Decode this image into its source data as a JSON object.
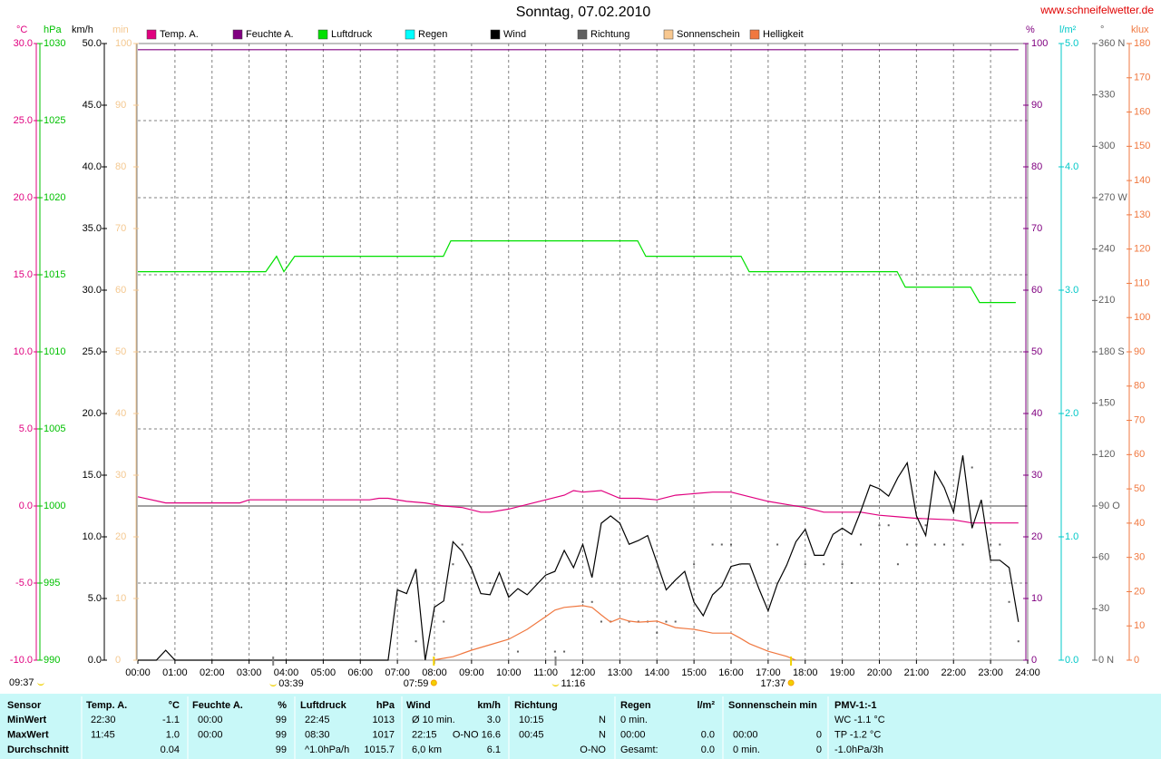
{
  "chart_data": {
    "type": "line",
    "title": "Sonntag, 07.02.2010",
    "source": "www.schneifelwetter.de",
    "grid": true,
    "xlim": [
      0,
      24
    ],
    "xticks": [
      {
        "value": 0,
        "label": "00:00"
      },
      {
        "value": 1,
        "label": "01:00"
      },
      {
        "value": 2,
        "label": "02:00"
      },
      {
        "value": 3,
        "label": "03:00"
      },
      {
        "value": 4,
        "label": "04:00"
      },
      {
        "value": 5,
        "label": "05:00"
      },
      {
        "value": 6,
        "label": "06:00"
      },
      {
        "value": 7,
        "label": "07:00"
      },
      {
        "value": 8,
        "label": "08:00"
      },
      {
        "value": 9,
        "label": "09:00"
      },
      {
        "value": 10,
        "label": "10:00"
      },
      {
        "value": 11,
        "label": "11:00"
      },
      {
        "value": 12,
        "label": "12:00"
      },
      {
        "value": 13,
        "label": "13:00"
      },
      {
        "value": 14,
        "label": "14:00"
      },
      {
        "value": 15,
        "label": "15:00"
      },
      {
        "value": 16,
        "label": "16:00"
      },
      {
        "value": 17,
        "label": "17:00"
      },
      {
        "value": 18,
        "label": "18:00"
      },
      {
        "value": 19,
        "label": "19:00"
      },
      {
        "value": 20,
        "label": "20:00"
      },
      {
        "value": 21,
        "label": "21:00"
      },
      {
        "value": 22,
        "label": "22:00"
      },
      {
        "value": 23,
        "label": "23:00"
      },
      {
        "value": 24,
        "label": "24:00"
      }
    ],
    "axes": {
      "temp": {
        "unit": "°C",
        "color": "#e0007f",
        "lim": [
          -10,
          30
        ],
        "ticks": [
          {
            "value": -10,
            "label": "-10.0"
          },
          {
            "value": -5,
            "label": "-5.0"
          },
          {
            "value": 0,
            "label": "0.0"
          },
          {
            "value": 5,
            "label": "5.0"
          },
          {
            "value": 10,
            "label": "10.0"
          },
          {
            "value": 15,
            "label": "15.0"
          },
          {
            "value": 20,
            "label": "20.0"
          },
          {
            "value": 25,
            "label": "25.0"
          },
          {
            "value": 30,
            "label": "30.0"
          }
        ]
      },
      "press": {
        "unit": "hPa",
        "color": "#00c000",
        "lim": [
          990,
          1030
        ],
        "ticks": [
          990,
          995,
          1000,
          1005,
          1010,
          1015,
          1020,
          1025,
          1030
        ]
      },
      "wind": {
        "unit": "km/h",
        "color": "#000000",
        "lim": [
          0,
          50
        ],
        "ticks": [
          {
            "value": 0,
            "label": "0.0"
          },
          {
            "value": 5,
            "label": "5.0"
          },
          {
            "value": 10,
            "label": "10.0"
          },
          {
            "value": 15,
            "label": "15.0"
          },
          {
            "value": 20,
            "label": "20.0"
          },
          {
            "value": 25,
            "label": "25.0"
          },
          {
            "value": 30,
            "label": "30.0"
          },
          {
            "value": 35,
            "label": "35.0"
          },
          {
            "value": 40,
            "label": "40.0"
          },
          {
            "value": 45,
            "label": "45.0"
          },
          {
            "value": 50,
            "label": "50.0"
          }
        ]
      },
      "sun": {
        "unit": "min",
        "color": "#f4c890",
        "lim": [
          0,
          100
        ],
        "ticks": [
          0,
          10,
          20,
          30,
          40,
          50,
          60,
          70,
          80,
          90,
          100
        ]
      },
      "hum": {
        "unit": "%",
        "color": "#800080",
        "lim": [
          0,
          100
        ],
        "ticks": [
          0,
          10,
          20,
          30,
          40,
          50,
          60,
          70,
          80,
          90,
          100
        ]
      },
      "rain": {
        "unit": "l/m²",
        "color": "#00c8c8",
        "lim": [
          0,
          5
        ],
        "ticks": [
          {
            "value": 0,
            "label": "0.0"
          },
          {
            "value": 1,
            "label": "1.0"
          },
          {
            "value": 2,
            "label": "2.0"
          },
          {
            "value": 3,
            "label": "3.0"
          },
          {
            "value": 4,
            "label": "4.0"
          },
          {
            "value": 5,
            "label": "5.0"
          }
        ]
      },
      "dir": {
        "unit": "°",
        "color": "#606060",
        "lim": [
          0,
          360
        ],
        "ticks": [
          {
            "value": 0,
            "label": "0 N"
          },
          30,
          60,
          {
            "value": 90,
            "label": "90 O"
          },
          120,
          150,
          {
            "value": 180,
            "label": "180 S"
          },
          210,
          240,
          {
            "value": 270,
            "label": "270 W"
          },
          300,
          330,
          {
            "value": 360,
            "label": "360 N"
          }
        ]
      },
      "lux": {
        "unit": "klux",
        "color": "#f07840",
        "lim": [
          0,
          180
        ],
        "ticks": [
          0,
          10,
          20,
          30,
          40,
          50,
          60,
          70,
          80,
          90,
          100,
          110,
          120,
          130,
          140,
          150,
          160,
          170,
          180
        ]
      }
    },
    "series": [
      {
        "name": "Temp. A.",
        "color": "#e0007f",
        "axis": "temp",
        "x": [
          0,
          0.75,
          2.75,
          3,
          6.25,
          6.5,
          6.75,
          7.25,
          7.75,
          8.25,
          8.75,
          9.25,
          9.5,
          10,
          10.5,
          11,
          11.5,
          11.75,
          12,
          12.5,
          13,
          13.5,
          14,
          14.5,
          15,
          15.5,
          16,
          16.5,
          17,
          17.5,
          18,
          18.5,
          19.5,
          20,
          20.5,
          21,
          22,
          22.5,
          23.75
        ],
        "values": [
          0.6,
          0.2,
          0.2,
          0.4,
          0.4,
          0.5,
          0.5,
          0.3,
          0.2,
          0.0,
          -0.1,
          -0.4,
          -0.4,
          -0.2,
          0.1,
          0.4,
          0.7,
          1.0,
          0.9,
          1.0,
          0.5,
          0.5,
          0.4,
          0.7,
          0.8,
          0.9,
          0.9,
          0.6,
          0.3,
          0.1,
          -0.1,
          -0.4,
          -0.4,
          -0.6,
          -0.7,
          -0.8,
          -0.9,
          -1.1,
          -1.1
        ]
      },
      {
        "name": "Feuchte A.",
        "color": "#800080",
        "axis": "hum",
        "x": [
          0,
          23.75
        ],
        "values": [
          99,
          99
        ]
      },
      {
        "name": "Luftdruck",
        "color": "#00e000",
        "axis": "press",
        "x": [
          0,
          3.45,
          3.74,
          3.94,
          4.23,
          8.24,
          8.44,
          13.48,
          13.7,
          16.27,
          16.49,
          20.48,
          20.7,
          22.46,
          22.7,
          23.68
        ],
        "values": [
          1015.2,
          1015.2,
          1016.2,
          1015.2,
          1016.2,
          1016.2,
          1017.2,
          1017.2,
          1016.2,
          1016.2,
          1015.2,
          1015.2,
          1014.2,
          1014.2,
          1013.2,
          1013.2
        ]
      },
      {
        "name": "Regen",
        "color": "#00ffff",
        "axis": "rain"
      },
      {
        "name": "Wind",
        "color": "#000000",
        "axis": "wind",
        "x": [
          0,
          0.5,
          0.75,
          1,
          6.75,
          7,
          7.25,
          7.5,
          7.75,
          8,
          8.25,
          8.5,
          8.75,
          9,
          9.25,
          9.5,
          9.75,
          10,
          10.25,
          10.5,
          10.75,
          11,
          11.25,
          11.5,
          11.75,
          12,
          12.25,
          12.5,
          12.75,
          13,
          13.25,
          13.5,
          13.75,
          14,
          14.25,
          14.5,
          14.75,
          15,
          15.25,
          15.5,
          15.75,
          16,
          16.25,
          16.5,
          16.75,
          17,
          17.25,
          17.5,
          17.75,
          18,
          18.25,
          18.5,
          18.75,
          19,
          19.25,
          19.5,
          19.75,
          20,
          20.25,
          20.5,
          20.75,
          21,
          21.25,
          21.5,
          21.75,
          22,
          22.25,
          22.5,
          22.75,
          23,
          23.25,
          23.5,
          23.75
        ],
        "values": [
          0,
          0,
          0.8,
          0,
          0,
          5.7,
          5.4,
          7.4,
          0,
          4.3,
          4.8,
          9.6,
          8.8,
          7.4,
          5.4,
          5.3,
          7.1,
          5.1,
          5.8,
          5.3,
          6.1,
          6.9,
          7.2,
          8.9,
          7.5,
          9.4,
          6.7,
          11.1,
          11.7,
          11.1,
          9.4,
          9.7,
          10.1,
          7.9,
          5.7,
          6.5,
          7.2,
          4.7,
          3.6,
          5.3,
          6.0,
          7.6,
          7.8,
          7.8,
          5.8,
          4.0,
          6.2,
          7.7,
          9.6,
          10.6,
          8.5,
          8.5,
          10.2,
          10.7,
          10.2,
          12.1,
          14.2,
          13.9,
          13.3,
          14.8,
          16.0,
          11.7,
          10.1,
          15.3,
          14.0,
          12.0,
          16.6,
          10.7,
          13.0,
          8.1,
          8.1,
          7.5,
          3.1
        ]
      },
      {
        "name": "Richtung",
        "color": "#606060",
        "axis": "dir",
        "style": "dots",
        "x": [
          7.5,
          8.25,
          8.5,
          8.75,
          9.5,
          10,
          10.25,
          11.25,
          11.5,
          12,
          12.25,
          12.5,
          12.75,
          13.25,
          13.5,
          13.75,
          14,
          14.25,
          14.5,
          15,
          15.5,
          15.75,
          16,
          16.25,
          16.5,
          17.25,
          18,
          18.5,
          19,
          19.25,
          19.5,
          20,
          20.25,
          20.5,
          20.75,
          21,
          21.25,
          21.5,
          21.75,
          22.25,
          22.5,
          23,
          23.25,
          23.5,
          23.75
        ],
        "values": [
          11,
          22.5,
          56,
          67.5,
          45,
          45,
          5,
          5,
          5,
          34,
          34,
          22.5,
          22.5,
          22.5,
          22.5,
          22.5,
          16,
          22.5,
          22.5,
          56,
          67.5,
          67.5,
          67.5,
          56,
          56,
          67.5,
          56,
          56,
          56,
          45,
          67.5,
          78.75,
          78.75,
          56,
          67.5,
          67.5,
          78.75,
          67.5,
          67.5,
          67.5,
          112.5,
          67.5,
          67.5,
          34,
          11
        ]
      },
      {
        "name": "Sonnenschein",
        "color": "#f8c890",
        "axis": "sun"
      },
      {
        "name": "Helligkeit",
        "color": "#f07840",
        "axis": "lux",
        "x": [
          7.95,
          8.5,
          9,
          9.5,
          10,
          10.5,
          11,
          11.25,
          11.5,
          12,
          12.25,
          12.5,
          12.75,
          13,
          13.25,
          13.5,
          14,
          14.5,
          15,
          15.5,
          16,
          16.25,
          16.5,
          17,
          17.5,
          17.75
        ],
        "values": [
          0,
          1,
          2.9,
          4.5,
          6.1,
          9,
          12.7,
          14.6,
          15.4,
          15.9,
          15.4,
          13.2,
          11.1,
          12.2,
          11.4,
          11.1,
          11.4,
          9.5,
          9.0,
          7.9,
          7.9,
          6.4,
          4.8,
          2.6,
          1.1,
          0
        ]
      }
    ],
    "astro": {
      "moon_left": "09:37",
      "moon_times": [
        "03:39",
        "11:16"
      ],
      "sun_times": [
        "07:59",
        "17:37"
      ]
    }
  },
  "table": {
    "header": [
      "Sensor",
      "Temp. A.",
      "°C",
      "Feuchte A.",
      "%",
      "Luftdruck",
      "hPa",
      "Wind",
      "km/h",
      "Richtung",
      "Regen",
      "l/m²",
      "Sonnenschein min",
      "PMV-1:-1"
    ],
    "rows": [
      {
        "label": "MinWert",
        "cells": [
          "22:30",
          "-1.1",
          "00:00",
          "99",
          "22:45",
          "1013",
          "Ø 10 min.",
          "3.0",
          "10:15",
          "N",
          "0 min.",
          null,
          null,
          null,
          "WC -1.1 °C"
        ]
      },
      {
        "label": "MaxWert",
        "cells": [
          "11:45",
          "1.0",
          "00:00",
          "99",
          "08:30",
          "1017",
          "22:15",
          "O-NO 16.6",
          "00:45",
          "N",
          "00:00",
          "0.0",
          "00:00",
          "0",
          "TP -1.2 °C"
        ]
      },
      {
        "label": "Durchschnitt",
        "cells": [
          null,
          "0.04",
          null,
          "99",
          "^1.0hPa/h",
          "1015.7",
          "6,0 km",
          "6.1",
          null,
          "O-NO",
          "Gesamt:",
          "0.0",
          "0 min.",
          "0",
          "-1.0hPa/3h"
        ]
      }
    ]
  }
}
